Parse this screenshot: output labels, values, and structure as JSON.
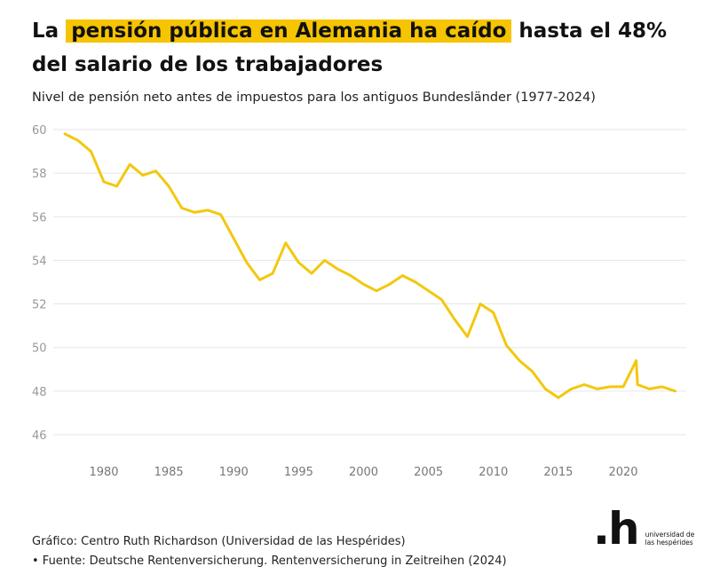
{
  "title": {
    "pre": "La",
    "highlight": "pensión pública en Alemania ha caído",
    "post": "hasta el 48% del salario de los trabajadores"
  },
  "subtitle": "Nivel de pensión neto antes de impuestos para los antiguos Bundesländer (1977-2024)",
  "credit": "Gráfico: Centro Ruth Richardson (Universidad de las Hespérides)",
  "source": "• Fuente: Deutsche Rentenversicherung. Rentenversicherung in Zeitreihen (2024)",
  "logo": {
    "mark": ".h",
    "text": "universidad de las hespérides"
  },
  "colors": {
    "line": "#f2c80f",
    "highlight": "#f6c400",
    "grid": "#e6e6e6"
  },
  "chart_data": {
    "type": "line",
    "title": "",
    "xlabel": "",
    "ylabel": "",
    "xlim": [
      1977,
      2024
    ],
    "ylim": [
      45.5,
      60.2
    ],
    "grid": true,
    "xticks": [
      1980,
      1985,
      1990,
      1995,
      2000,
      2005,
      2010,
      2015,
      2020
    ],
    "yticks": [
      46,
      48,
      50,
      52,
      54,
      56,
      58,
      60
    ],
    "series": [
      {
        "x": [
          1977,
          1978,
          1979,
          1980,
          1981,
          1982,
          1983,
          1984,
          1985,
          1986,
          1987,
          1988,
          1989,
          1990,
          1991,
          1992,
          1993,
          1994,
          1995,
          1996,
          1997,
          1998,
          1999,
          2000,
          2001,
          2002,
          2003,
          2004,
          2005,
          2006,
          2007,
          2008,
          2009,
          2010,
          2011,
          2012,
          2013,
          2014,
          2015,
          2016,
          2017,
          2018,
          2019,
          2020,
          2021,
          2021.1,
          2022,
          2023,
          2024
        ],
        "y": [
          59.8,
          59.5,
          59.0,
          57.6,
          57.4,
          58.4,
          57.9,
          58.1,
          57.4,
          56.4,
          56.2,
          56.3,
          56.1,
          55.0,
          53.9,
          53.1,
          53.4,
          54.8,
          53.9,
          53.4,
          54.0,
          53.6,
          53.3,
          52.9,
          52.6,
          52.9,
          53.3,
          53.0,
          52.6,
          52.2,
          51.3,
          50.5,
          52.0,
          51.6,
          50.1,
          49.4,
          48.9,
          48.1,
          47.7,
          48.1,
          48.3,
          48.1,
          48.2,
          48.2,
          49.4,
          48.3,
          48.1,
          48.2,
          48.0
        ]
      }
    ]
  }
}
